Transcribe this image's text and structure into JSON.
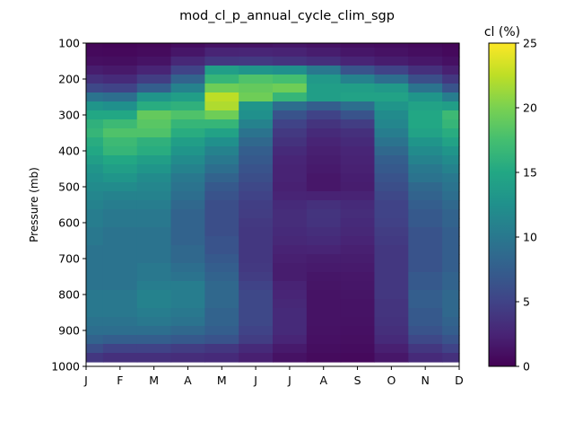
{
  "chart_data": {
    "type": "heatmap",
    "title": "mod_cl_p_annual_cycle_clim_sgp",
    "xlabel": "",
    "ylabel": "Pressure (mb)",
    "x_categories": [
      "J",
      "F",
      "M",
      "A",
      "M",
      "J",
      "J",
      "A",
      "S",
      "O",
      "N",
      "D"
    ],
    "y_ticks": [
      100,
      200,
      300,
      400,
      500,
      600,
      700,
      800,
      900,
      1000
    ],
    "ylim": [
      100,
      1000
    ],
    "y_inverted": true,
    "colorbar": {
      "label": "cl (%)",
      "colormap": "viridis",
      "range": [
        0,
        25
      ],
      "ticks": [
        0,
        5,
        10,
        15,
        20,
        25
      ]
    },
    "levels": [
      100,
      125,
      150,
      175,
      200,
      225,
      250,
      275,
      300,
      325,
      350,
      375,
      400,
      425,
      450,
      475,
      500,
      525,
      550,
      575,
      600,
      625,
      650,
      675,
      700,
      725,
      750,
      775,
      800,
      825,
      850,
      875,
      900,
      925,
      950,
      975
    ],
    "level_bounds": [
      87.5,
      987.5
    ],
    "values": [
      [
        0.4,
        0.3,
        0.4,
        0.8,
        1.2,
        1.3,
        1.5,
        1.2,
        0.9,
        0.8,
        0.6,
        0.4
      ],
      [
        0.6,
        0.5,
        0.7,
        1.5,
        2.5,
        2.6,
        2.4,
        2.0,
        1.5,
        1.2,
        0.9,
        0.6
      ],
      [
        1.0,
        0.9,
        1.3,
        2.8,
        4.0,
        4.2,
        3.8,
        3.3,
        2.5,
        2.0,
        1.6,
        1.1
      ],
      [
        2.0,
        1.7,
        2.5,
        5.0,
        14.0,
        13.0,
        12.5,
        10.0,
        6.5,
        5.0,
        3.5,
        2.2
      ],
      [
        3.5,
        3.0,
        4.5,
        8.0,
        16.5,
        18.0,
        17.5,
        13.5,
        11.0,
        9.0,
        6.0,
        4.0
      ],
      [
        5.5,
        5.0,
        7.5,
        11.0,
        19.5,
        19.0,
        19.5,
        14.0,
        14.0,
        13.5,
        9.5,
        6.5
      ],
      [
        9.5,
        9.0,
        13.0,
        14.0,
        22.5,
        19.5,
        16.5,
        14.0,
        14.5,
        14.5,
        13.0,
        10.5
      ],
      [
        13.0,
        12.5,
        15.5,
        16.0,
        22.0,
        13.0,
        9.0,
        7.5,
        9.0,
        13.0,
        14.5,
        14.0
      ],
      [
        15.0,
        15.0,
        19.0,
        18.0,
        19.5,
        12.5,
        6.5,
        5.0,
        6.5,
        12.0,
        15.0,
        17.0
      ],
      [
        16.0,
        17.0,
        18.5,
        16.5,
        16.5,
        11.0,
        5.0,
        3.8,
        4.5,
        11.5,
        15.0,
        16.5
      ],
      [
        16.5,
        18.0,
        18.0,
        15.5,
        14.5,
        9.5,
        4.2,
        3.0,
        3.5,
        10.5,
        14.5,
        15.5
      ],
      [
        15.5,
        17.0,
        16.0,
        14.0,
        12.5,
        8.5,
        3.6,
        2.5,
        3.0,
        9.5,
        13.0,
        14.5
      ],
      [
        15.0,
        16.5,
        15.5,
        13.0,
        11.0,
        7.5,
        3.0,
        2.2,
        2.6,
        8.5,
        12.0,
        13.0
      ],
      [
        14.0,
        15.0,
        14.0,
        12.0,
        10.0,
        7.0,
        2.6,
        2.0,
        2.4,
        7.5,
        11.0,
        12.0
      ],
      [
        13.0,
        14.0,
        13.0,
        11.0,
        9.0,
        6.5,
        2.4,
        1.8,
        2.3,
        7.0,
        10.0,
        11.0
      ],
      [
        12.5,
        13.0,
        12.0,
        10.0,
        8.0,
        6.0,
        2.4,
        1.6,
        2.1,
        6.5,
        9.5,
        10.0
      ],
      [
        12.0,
        12.0,
        11.5,
        9.5,
        7.0,
        5.5,
        2.3,
        1.6,
        2.0,
        6.0,
        8.5,
        9.5
      ],
      [
        11.5,
        11.0,
        11.0,
        9.0,
        6.5,
        5.0,
        2.5,
        2.4,
        2.4,
        5.5,
        8.0,
        9.0
      ],
      [
        11.0,
        10.5,
        10.5,
        8.5,
        6.0,
        4.6,
        3.0,
        3.5,
        3.0,
        5.0,
        7.5,
        8.5
      ],
      [
        10.5,
        10.0,
        10.0,
        8.0,
        6.0,
        4.5,
        3.2,
        3.8,
        3.2,
        5.0,
        7.0,
        8.0
      ],
      [
        10.5,
        10.0,
        10.0,
        8.0,
        6.0,
        4.2,
        3.2,
        3.7,
        3.0,
        4.8,
        7.0,
        8.0
      ],
      [
        10.0,
        9.5,
        9.5,
        8.0,
        6.0,
        4.0,
        3.0,
        3.3,
        2.8,
        4.5,
        6.5,
        7.5
      ],
      [
        10.0,
        9.5,
        9.5,
        8.0,
        6.5,
        4.0,
        2.8,
        3.0,
        2.5,
        4.3,
        6.5,
        7.5
      ],
      [
        9.5,
        9.5,
        9.5,
        8.5,
        6.5,
        4.0,
        2.4,
        2.5,
        2.2,
        4.0,
        6.5,
        7.5
      ],
      [
        9.5,
        9.5,
        9.5,
        8.5,
        7.0,
        4.0,
        2.2,
        2.0,
        2.0,
        4.0,
        6.5,
        7.5
      ],
      [
        9.5,
        9.5,
        10.0,
        9.0,
        7.5,
        4.2,
        2.0,
        1.8,
        1.8,
        4.0,
        6.5,
        7.5
      ],
      [
        9.5,
        9.5,
        10.0,
        9.5,
        8.0,
        4.5,
        2.0,
        1.5,
        1.6,
        4.0,
        7.0,
        8.0
      ],
      [
        9.5,
        9.5,
        10.5,
        10.5,
        8.5,
        5.0,
        2.4,
        1.4,
        1.5,
        4.0,
        7.0,
        8.0
      ],
      [
        10.0,
        10.0,
        11.0,
        10.5,
        8.5,
        5.5,
        2.6,
        1.3,
        1.4,
        4.0,
        7.5,
        8.5
      ],
      [
        10.0,
        10.0,
        11.0,
        10.5,
        8.5,
        5.5,
        2.8,
        1.3,
        1.3,
        3.8,
        7.5,
        8.5
      ],
      [
        10.0,
        10.0,
        10.5,
        10.0,
        8.0,
        5.5,
        3.0,
        1.3,
        1.3,
        3.8,
        7.0,
        8.5
      ],
      [
        9.5,
        9.5,
        10.0,
        9.5,
        8.0,
        5.5,
        3.0,
        1.3,
        1.2,
        3.6,
        7.0,
        8.0
      ],
      [
        9.0,
        9.0,
        9.0,
        8.5,
        7.5,
        5.0,
        3.0,
        1.2,
        1.1,
        3.4,
        6.5,
        7.5
      ],
      [
        8.0,
        7.5,
        7.5,
        7.0,
        6.5,
        4.5,
        2.6,
        1.1,
        1.0,
        3.0,
        5.5,
        6.5
      ],
      [
        6.0,
        5.0,
        5.0,
        4.5,
        4.0,
        3.0,
        1.8,
        0.9,
        0.8,
        2.2,
        4.0,
        5.0
      ],
      [
        4.0,
        3.5,
        3.5,
        3.2,
        3.0,
        2.2,
        1.2,
        0.7,
        0.6,
        1.6,
        3.0,
        3.5
      ]
    ]
  }
}
